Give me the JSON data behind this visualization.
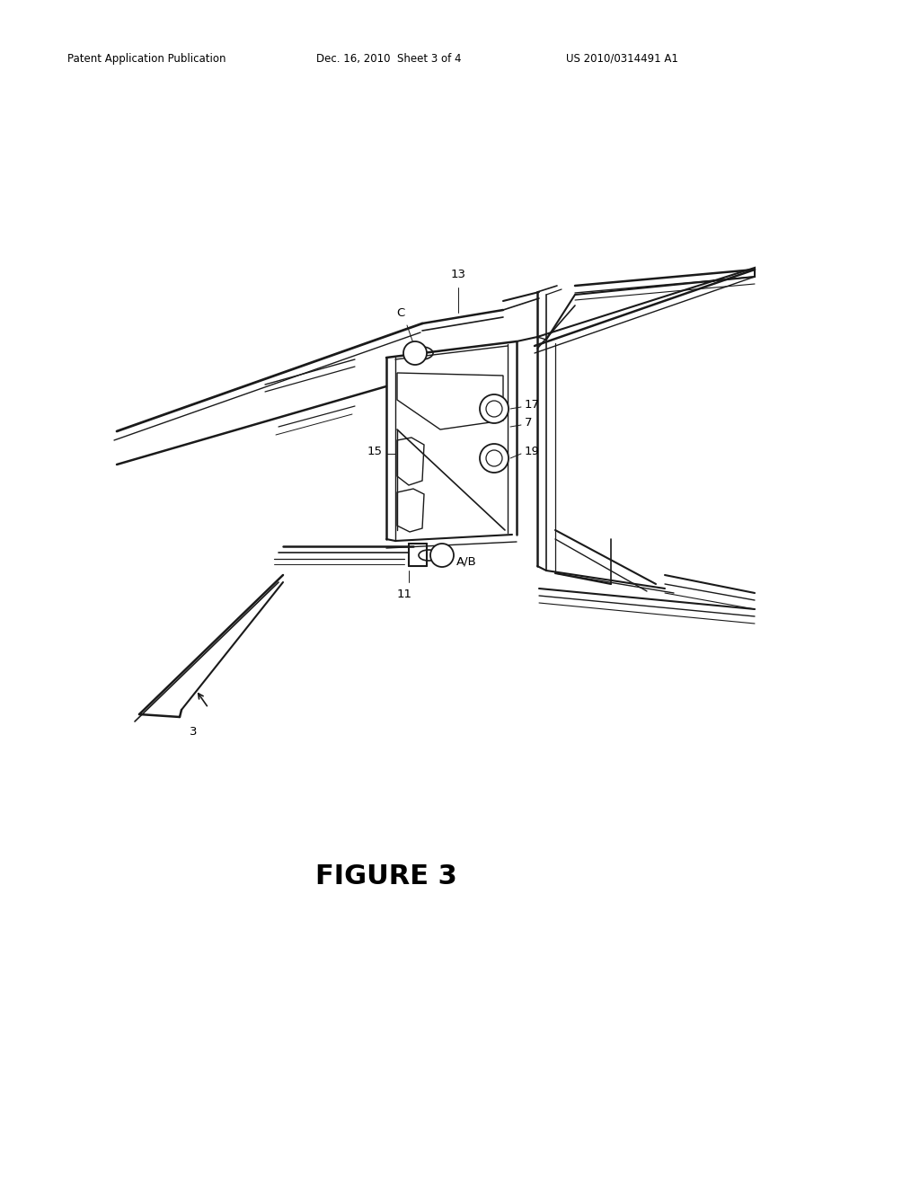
{
  "bg_color": "#ffffff",
  "lc": "#1a1a1a",
  "header_left": "Patent Application Publication",
  "header_mid": "Dec. 16, 2010  Sheet 3 of 4",
  "header_right": "US 2010/0314491 A1",
  "figure_label": "FIGURE 3",
  "fig_w": 10.24,
  "fig_h": 13.2,
  "dpi": 100
}
